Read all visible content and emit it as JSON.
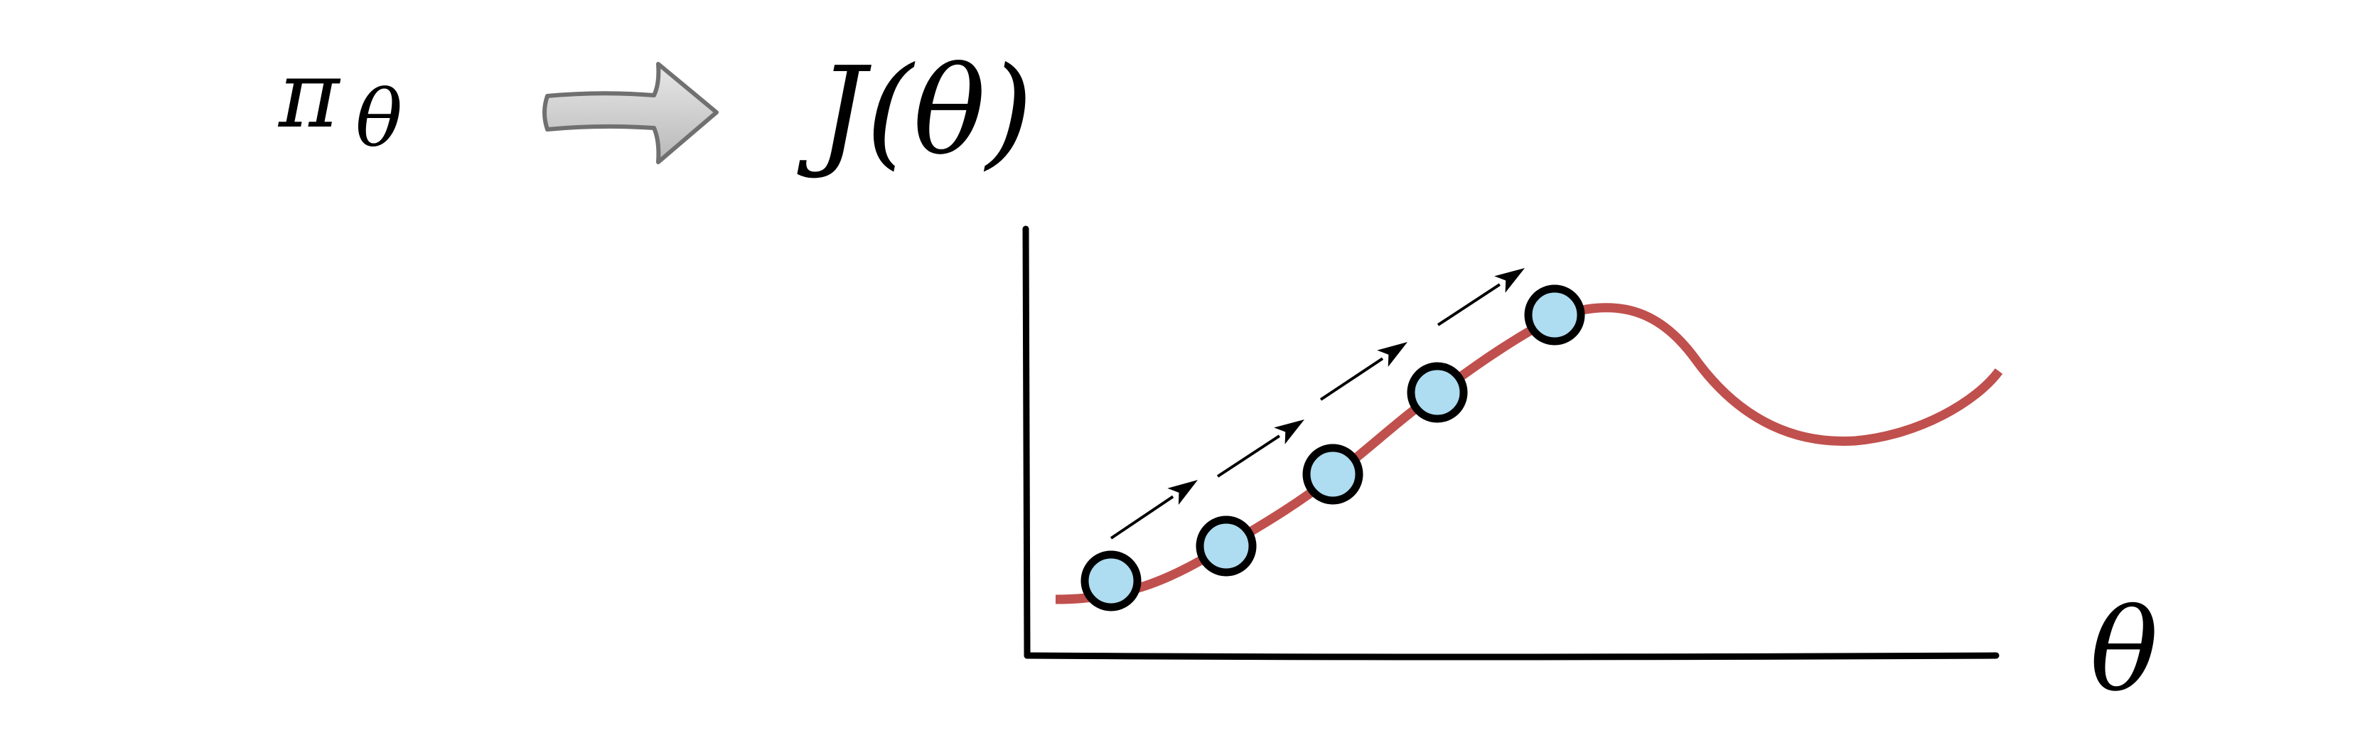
{
  "policy_label": {
    "symbol": "π",
    "subscript": "θ"
  },
  "objective_label": "J(θ)",
  "x_axis_label": "θ",
  "colors": {
    "curve": "#c0504d",
    "point_fill": "#aedcf0",
    "point_stroke": "#000000",
    "axis": "#000000",
    "arrow_fill_light": "#e8e8e8",
    "arrow_fill_dark": "#b8b8b8",
    "arrow_stroke": "#707070"
  },
  "icons": {
    "transition_arrow": "block-right-arrow-icon",
    "step_arrow": "diagonal-step-arrow-icon"
  },
  "diagram": {
    "sample_points": 5,
    "gradient_step_arrows": 4
  }
}
